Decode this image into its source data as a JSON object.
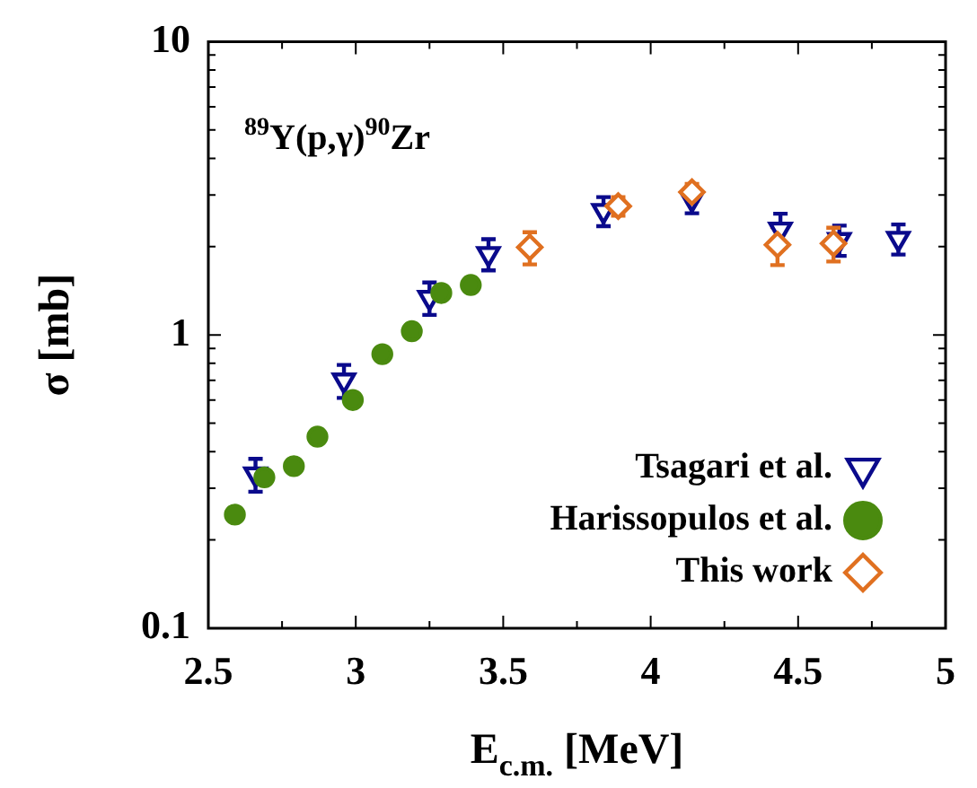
{
  "chart_data": {
    "type": "scatter",
    "xlabel": "E$_{c.m.}$ [MeV]",
    "ylabel": "σ [mb]",
    "annotations": [
      "$^{89}$Y(p,γ)$^{90}$Zr"
    ],
    "log": "y",
    "grid": false,
    "legend": "bottom right",
    "xlim": [
      2.5,
      5
    ],
    "xticks": [
      2.5,
      {
        "value": 2.75,
        "label": null
      },
      3,
      {
        "value": 3.25,
        "label": null
      },
      3.5,
      {
        "value": 3.75,
        "label": null
      },
      4,
      {
        "value": 4.25,
        "label": null
      },
      4.5,
      {
        "value": 4.75,
        "label": null
      },
      5
    ],
    "ylim": [
      0.1,
      10
    ],
    "yticks": [
      0.1,
      {
        "value": 0.2,
        "label": null
      },
      {
        "value": 0.3,
        "label": null
      },
      {
        "value": 0.4,
        "label": null
      },
      {
        "value": 0.5,
        "label": null
      },
      {
        "value": 0.6,
        "label": null
      },
      {
        "value": 0.7,
        "label": null
      },
      {
        "value": 0.8,
        "label": null
      },
      {
        "value": 0.9,
        "label": null
      },
      1,
      {
        "value": 2,
        "label": null
      },
      {
        "value": 3,
        "label": null
      },
      {
        "value": 4,
        "label": null
      },
      {
        "value": 5,
        "label": null
      },
      {
        "value": 6,
        "label": null
      },
      {
        "value": 7,
        "label": null
      },
      {
        "value": 8,
        "label": null
      },
      {
        "value": 9,
        "label": null
      },
      10
    ],
    "series": [
      {
        "name": "Tsagari et al.",
        "color": "#0a0a8c",
        "marker": "triangle",
        "x": [
          2.66,
          2.96,
          3.25,
          3.45,
          3.84,
          4.14,
          4.44,
          4.64,
          4.84
        ],
        "values": [
          0.335,
          0.7,
          1.34,
          1.89,
          2.65,
          2.9,
          2.29,
          2.11,
          2.13
        ],
        "errors": [
          0.043,
          0.09,
          0.17,
          0.23,
          0.3,
          0.3,
          0.3,
          0.25,
          0.25
        ]
      },
      {
        "name": "Harissopulos et al.",
        "color": "#4a8a0f",
        "marker": "circle",
        "x": [
          2.59,
          2.69,
          2.79,
          2.87,
          2.99,
          3.09,
          3.19,
          3.29,
          3.39
        ],
        "values": [
          0.244,
          0.327,
          0.357,
          0.45,
          0.6,
          0.86,
          1.03,
          1.39,
          1.48
        ]
      },
      {
        "name": "This work",
        "color": "#e07020",
        "marker": "diamond",
        "x": [
          3.59,
          3.89,
          4.14,
          4.43,
          4.62
        ],
        "values": [
          1.99,
          2.75,
          3.07,
          2.03,
          2.05
        ],
        "errors": [
          0.25,
          0.2,
          0.2,
          0.3,
          0.27
        ]
      }
    ]
  }
}
